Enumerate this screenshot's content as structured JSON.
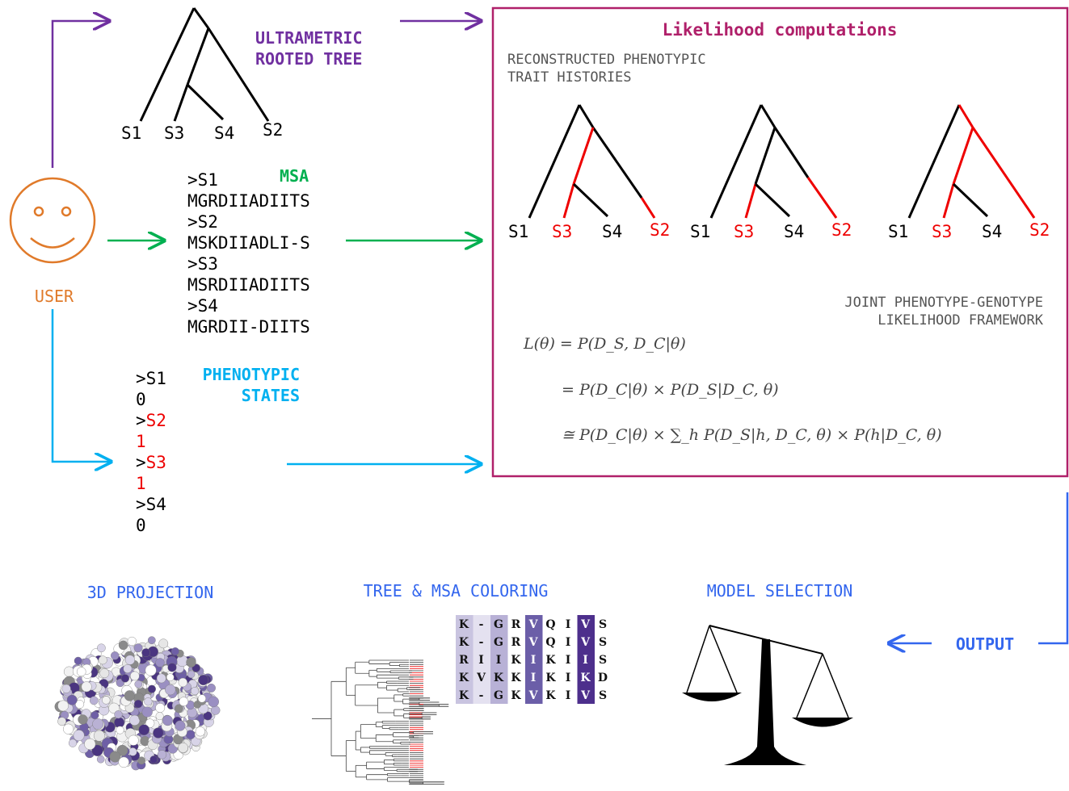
{
  "colors": {
    "tree_label": "#7030a0",
    "msa": "#00b050",
    "phenotypic": "#00b0f0",
    "user": "#e07a2a",
    "box": "#b0206a",
    "output": "#3366ee",
    "red": "#ee0000",
    "gray_text": "#555555"
  },
  "tree": {
    "label_line1": "ULTRAMETRIC",
    "label_line2": "ROOTED TREE",
    "tips": [
      "S1",
      "S3",
      "S4",
      "S2"
    ]
  },
  "user": {
    "label": "USER"
  },
  "msa": {
    "label": "MSA",
    "lines": [
      ">S1",
      "MGRDIIADIITS",
      ">S2",
      "MSKDIIADLI-S",
      ">S3",
      "MSRDIIADIITS",
      ">S4",
      "MGRDII-DIITS"
    ]
  },
  "phenotypic": {
    "label_line1": "PHENOTYPIC",
    "label_line2": "STATES",
    "header_prefix": ">",
    "entries": [
      {
        "name": "S1",
        "value": "0",
        "highlight": false
      },
      {
        "name": "S2",
        "value": "1",
        "highlight": true
      },
      {
        "name": "S3",
        "value": "1",
        "highlight": true
      },
      {
        "name": "S4",
        "value": "0",
        "highlight": false
      }
    ]
  },
  "likelihood_box": {
    "title": "Likelihood computations",
    "histories_line1": "RECONSTRUCTED PHENOTYPIC",
    "histories_line2": "TRAIT HISTORIES",
    "histories": [
      {
        "tips": [
          "S1",
          "S3",
          "S4",
          "S2"
        ]
      },
      {
        "tips": [
          "S1",
          "S3",
          "S4",
          "S2"
        ]
      },
      {
        "tips": [
          "S1",
          "S3",
          "S4",
          "S2"
        ]
      }
    ],
    "framework_line1": "JOINT PHENOTYPE-GENOTYPE",
    "framework_line2": "LIKELIHOOD FRAMEWORK",
    "equations": {
      "line1": "L(θ) = P(D_S, D_C|θ)",
      "line2": "= P(D_C|θ) × P(D_S|D_C, θ)",
      "line3": "≅ P(D_C|θ) × ∑_h P(D_S|h, D_C, θ) × P(h|D_C, θ)"
    }
  },
  "output": {
    "label": "OUTPUT",
    "projection_label": "3D PROJECTION",
    "coloring_label": "TREE & MSA COLORING",
    "model_label": "MODEL SELECTION",
    "msa_grid": [
      [
        "K",
        "-",
        "G",
        "R",
        "V",
        "Q",
        "I",
        "V",
        "S"
      ],
      [
        "K",
        "-",
        "G",
        "R",
        "V",
        "Q",
        "I",
        "V",
        "S"
      ],
      [
        "R",
        "I",
        "I",
        "K",
        "I",
        "K",
        "I",
        "I",
        "S"
      ],
      [
        "K",
        "V",
        "K",
        "K",
        "I",
        "K",
        "I",
        "K",
        "D"
      ],
      [
        "K",
        "-",
        "G",
        "K",
        "V",
        "K",
        "I",
        "V",
        "S"
      ]
    ]
  }
}
